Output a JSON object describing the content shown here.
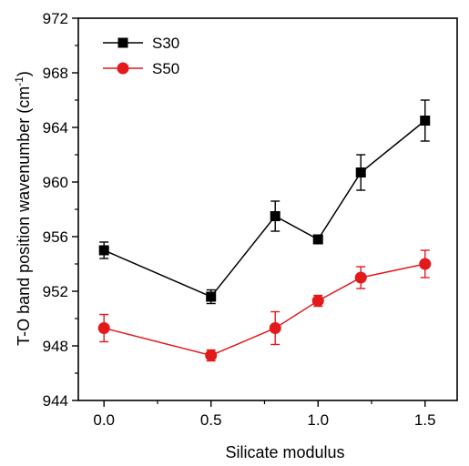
{
  "chart_data": {
    "type": "line",
    "x": [
      0.0,
      0.5,
      0.8,
      1.0,
      1.2,
      1.5
    ],
    "series": [
      {
        "name": "S30",
        "color": "#000000",
        "marker": "square",
        "values": [
          955.0,
          951.6,
          957.5,
          955.8,
          960.7,
          964.5
        ],
        "errors": [
          0.6,
          0.5,
          1.1,
          0.3,
          1.3,
          1.5
        ]
      },
      {
        "name": "S50",
        "color": "#e3191c",
        "marker": "circle",
        "values": [
          949.3,
          947.3,
          949.3,
          951.3,
          953.0,
          954.0
        ],
        "errors": [
          1.0,
          0.4,
          1.2,
          0.4,
          0.8,
          1.0
        ]
      }
    ],
    "xlabel": "Silicate modulus",
    "ylabel": "T-O band position wavenumber (cm",
    "ylabel_sup": "-1",
    "ylabel_close": ")",
    "xlim": [
      -0.12,
      1.65
    ],
    "ylim": [
      944,
      972
    ],
    "xticks": [
      "0.0",
      "0.5",
      "1.0",
      "1.5"
    ],
    "xtick_values": [
      0.0,
      0.5,
      1.0,
      1.5
    ],
    "yticks": [
      "944",
      "948",
      "952",
      "956",
      "960",
      "964",
      "968",
      "972"
    ],
    "ytick_values": [
      944,
      948,
      952,
      956,
      960,
      964,
      968,
      972
    ],
    "legend_position": "top-left",
    "grid": false
  }
}
